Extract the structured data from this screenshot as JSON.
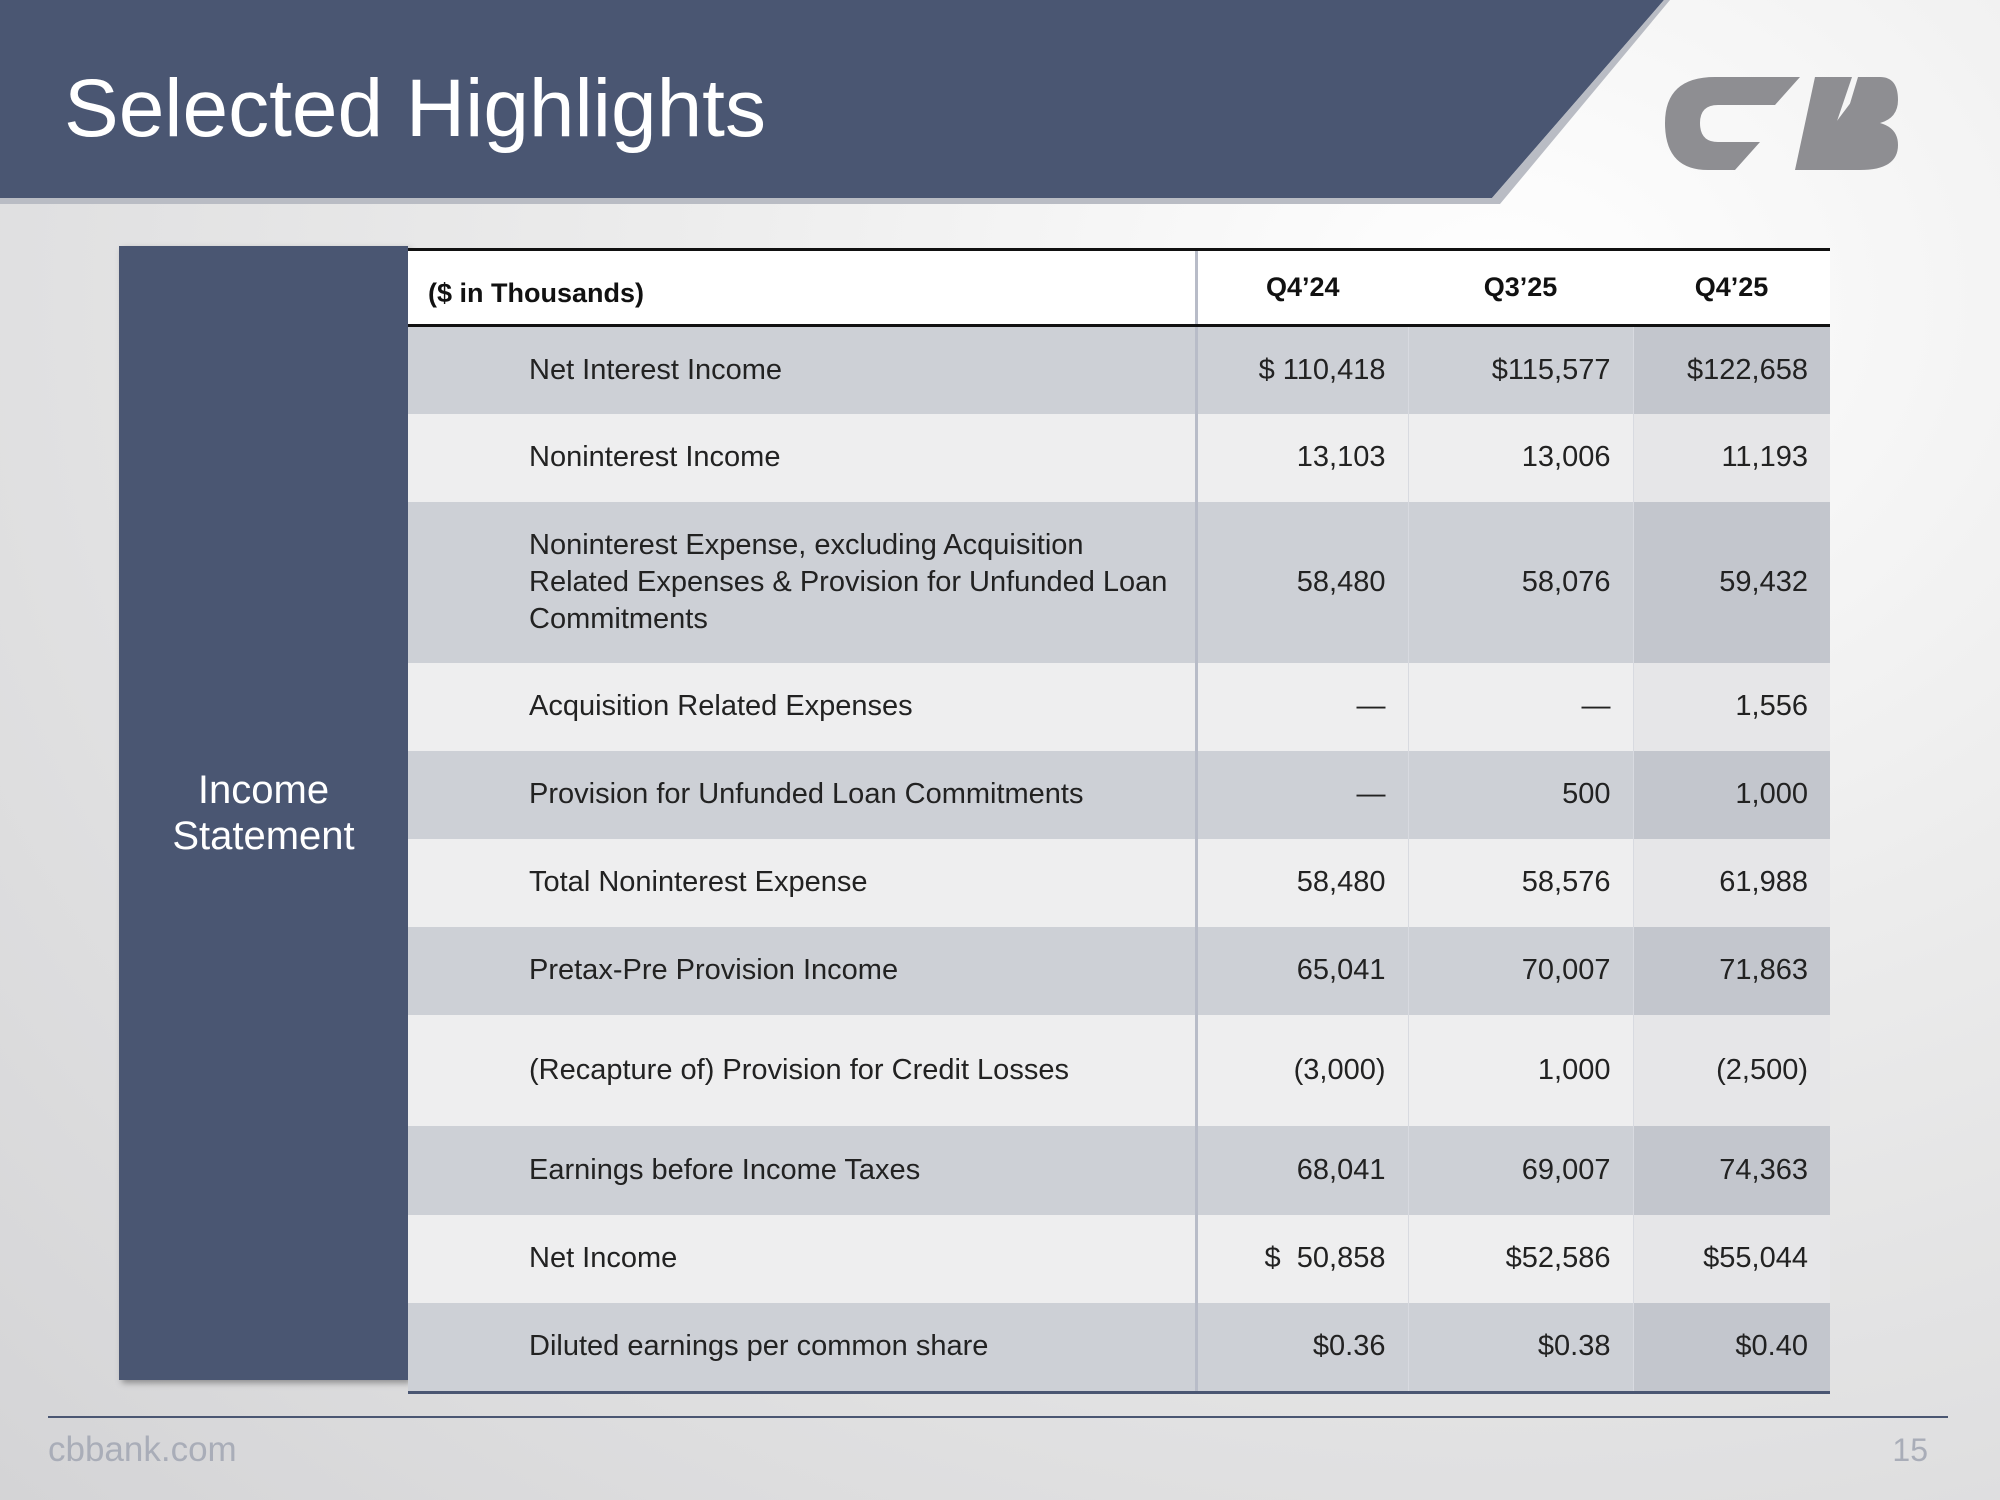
{
  "header": {
    "title": "Selected Highlights"
  },
  "side_label": "Income Statement",
  "table": {
    "header": [
      "($ in Thousands)",
      "Q4’24",
      "Q3’25",
      "Q4’25"
    ],
    "rows": [
      [
        "Net Interest Income",
        "$ 110,418",
        "$115,577",
        "$122,658"
      ],
      [
        "Noninterest Income",
        "13,103",
        "13,006",
        "11,193"
      ],
      [
        "Noninterest Expense, excluding Acquisition Related Expenses & Provision for Unfunded Loan Commitments",
        "58,480",
        "58,076",
        "59,432"
      ],
      [
        "Acquisition Related Expenses",
        "—",
        "—",
        "1,556"
      ],
      [
        "Provision for Unfunded Loan Commitments",
        "—",
        "500",
        "1,000"
      ],
      [
        "Total Noninterest Expense",
        "58,480",
        "58,576",
        "61,988"
      ],
      [
        "Pretax-Pre Provision Income",
        "65,041",
        "70,007",
        "71,863"
      ],
      [
        "(Recapture of) Provision for Credit Losses",
        "(3,000)",
        "1,000",
        "(2,500)"
      ],
      [
        "Earnings before Income Taxes",
        "68,041",
        "69,007",
        "74,363"
      ],
      [
        "Net Income",
        "$  50,858",
        "$52,586",
        "$55,044"
      ],
      [
        "Diluted earnings per common share",
        "$0.36",
        "$0.38",
        "$0.40"
      ]
    ]
  },
  "footer": {
    "url": "cbbank.com",
    "page": "15"
  }
}
